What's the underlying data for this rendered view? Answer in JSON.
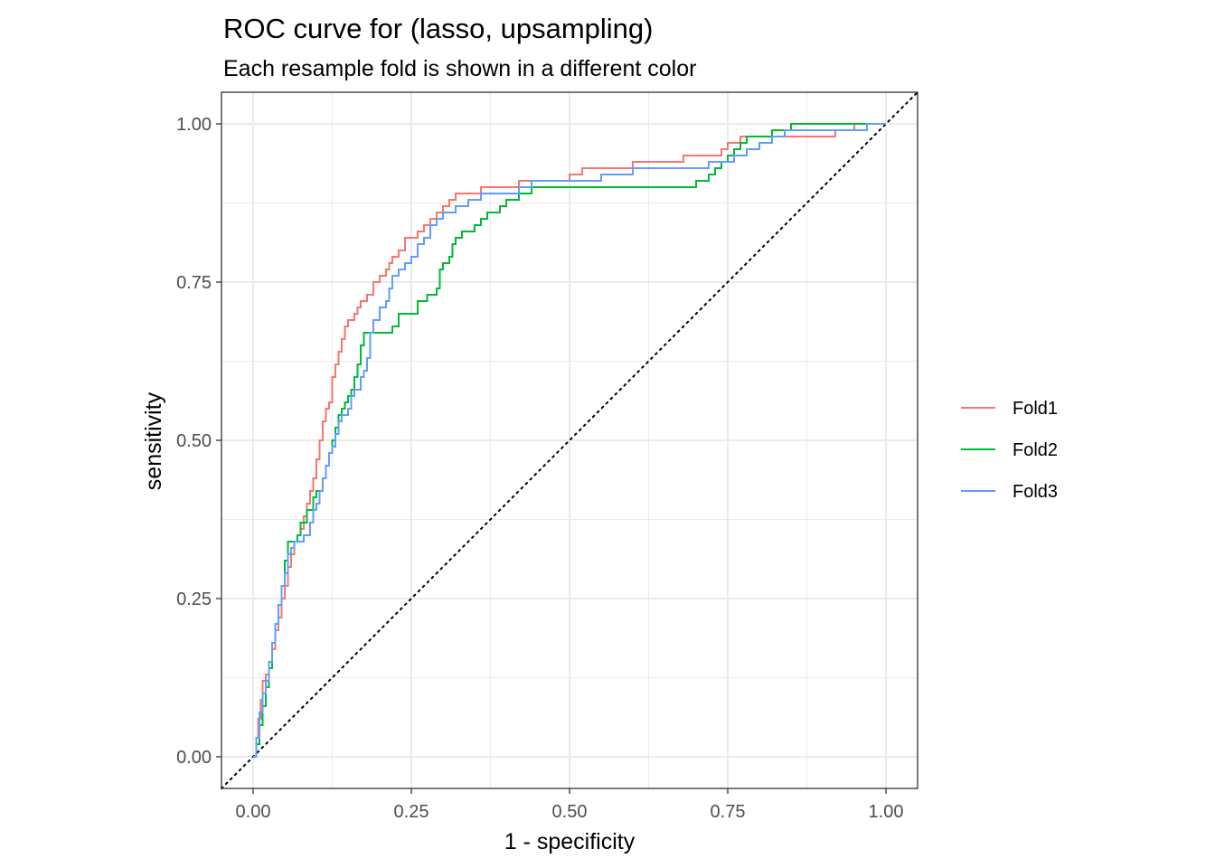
{
  "chart_data": {
    "type": "line",
    "title": "ROC curve for (lasso, upsampling)",
    "subtitle": "Each resample fold is shown in a different color",
    "xlabel": "1 - specificity",
    "ylabel": "sensitivity",
    "xlim": [
      -0.05,
      1.05
    ],
    "ylim": [
      -0.05,
      1.05
    ],
    "x_ticks": [
      0.0,
      0.25,
      0.5,
      0.75,
      1.0
    ],
    "x_tick_labels": [
      "0.00",
      "0.25",
      "0.50",
      "0.75",
      "1.00"
    ],
    "y_ticks": [
      0.0,
      0.25,
      0.5,
      0.75,
      1.0
    ],
    "y_tick_labels": [
      "0.00",
      "0.25",
      "0.50",
      "0.75",
      "1.00"
    ],
    "grid": true,
    "legend_position": "right",
    "reference_line": {
      "style": "dotted",
      "color": "#000000",
      "from": [
        0,
        0
      ],
      "to": [
        1,
        1
      ]
    },
    "series": [
      {
        "name": "Fold1",
        "color": "#F8766D",
        "points": [
          [
            0,
            0
          ],
          [
            0.005,
            0.03
          ],
          [
            0.008,
            0.06
          ],
          [
            0.012,
            0.09
          ],
          [
            0.015,
            0.12
          ],
          [
            0.02,
            0.13
          ],
          [
            0.025,
            0.14
          ],
          [
            0.03,
            0.17
          ],
          [
            0.035,
            0.2
          ],
          [
            0.04,
            0.22
          ],
          [
            0.045,
            0.25
          ],
          [
            0.05,
            0.27
          ],
          [
            0.055,
            0.3
          ],
          [
            0.06,
            0.32
          ],
          [
            0.065,
            0.34
          ],
          [
            0.07,
            0.35
          ],
          [
            0.075,
            0.36
          ],
          [
            0.08,
            0.38
          ],
          [
            0.085,
            0.4
          ],
          [
            0.09,
            0.42
          ],
          [
            0.095,
            0.44
          ],
          [
            0.1,
            0.47
          ],
          [
            0.105,
            0.5
          ],
          [
            0.11,
            0.53
          ],
          [
            0.115,
            0.55
          ],
          [
            0.12,
            0.56
          ],
          [
            0.125,
            0.6
          ],
          [
            0.13,
            0.62
          ],
          [
            0.135,
            0.64
          ],
          [
            0.14,
            0.66
          ],
          [
            0.145,
            0.68
          ],
          [
            0.15,
            0.69
          ],
          [
            0.16,
            0.7
          ],
          [
            0.165,
            0.71
          ],
          [
            0.17,
            0.72
          ],
          [
            0.18,
            0.73
          ],
          [
            0.19,
            0.75
          ],
          [
            0.2,
            0.76
          ],
          [
            0.21,
            0.77
          ],
          [
            0.215,
            0.78
          ],
          [
            0.22,
            0.79
          ],
          [
            0.23,
            0.8
          ],
          [
            0.24,
            0.82
          ],
          [
            0.26,
            0.83
          ],
          [
            0.27,
            0.84
          ],
          [
            0.28,
            0.85
          ],
          [
            0.29,
            0.86
          ],
          [
            0.3,
            0.87
          ],
          [
            0.31,
            0.88
          ],
          [
            0.32,
            0.89
          ],
          [
            0.36,
            0.9
          ],
          [
            0.42,
            0.91
          ],
          [
            0.5,
            0.92
          ],
          [
            0.52,
            0.93
          ],
          [
            0.6,
            0.94
          ],
          [
            0.68,
            0.95
          ],
          [
            0.74,
            0.96
          ],
          [
            0.75,
            0.97
          ],
          [
            0.77,
            0.98
          ],
          [
            0.85,
            0.98
          ],
          [
            0.92,
            0.99
          ],
          [
            0.95,
            1.0
          ],
          [
            1.0,
            1.0
          ]
        ]
      },
      {
        "name": "Fold2",
        "color": "#00BA38",
        "points": [
          [
            0,
            0
          ],
          [
            0.005,
            0.02
          ],
          [
            0.01,
            0.05
          ],
          [
            0.015,
            0.08
          ],
          [
            0.02,
            0.11
          ],
          [
            0.025,
            0.14
          ],
          [
            0.03,
            0.18
          ],
          [
            0.035,
            0.21
          ],
          [
            0.04,
            0.24
          ],
          [
            0.045,
            0.27
          ],
          [
            0.05,
            0.31
          ],
          [
            0.055,
            0.34
          ],
          [
            0.07,
            0.35
          ],
          [
            0.075,
            0.37
          ],
          [
            0.085,
            0.39
          ],
          [
            0.095,
            0.41
          ],
          [
            0.1,
            0.42
          ],
          [
            0.11,
            0.44
          ],
          [
            0.115,
            0.46
          ],
          [
            0.12,
            0.48
          ],
          [
            0.125,
            0.5
          ],
          [
            0.13,
            0.52
          ],
          [
            0.135,
            0.54
          ],
          [
            0.14,
            0.55
          ],
          [
            0.145,
            0.56
          ],
          [
            0.15,
            0.57
          ],
          [
            0.155,
            0.58
          ],
          [
            0.16,
            0.6
          ],
          [
            0.165,
            0.62
          ],
          [
            0.17,
            0.65
          ],
          [
            0.175,
            0.67
          ],
          [
            0.22,
            0.68
          ],
          [
            0.23,
            0.7
          ],
          [
            0.255,
            0.7
          ],
          [
            0.26,
            0.72
          ],
          [
            0.275,
            0.73
          ],
          [
            0.29,
            0.74
          ],
          [
            0.295,
            0.77
          ],
          [
            0.3,
            0.78
          ],
          [
            0.31,
            0.79
          ],
          [
            0.315,
            0.81
          ],
          [
            0.32,
            0.82
          ],
          [
            0.33,
            0.83
          ],
          [
            0.35,
            0.84
          ],
          [
            0.36,
            0.85
          ],
          [
            0.37,
            0.86
          ],
          [
            0.38,
            0.86
          ],
          [
            0.39,
            0.87
          ],
          [
            0.4,
            0.88
          ],
          [
            0.41,
            0.88
          ],
          [
            0.42,
            0.89
          ],
          [
            0.44,
            0.9
          ],
          [
            0.6,
            0.9
          ],
          [
            0.7,
            0.91
          ],
          [
            0.72,
            0.92
          ],
          [
            0.73,
            0.93
          ],
          [
            0.74,
            0.94
          ],
          [
            0.75,
            0.95
          ],
          [
            0.76,
            0.96
          ],
          [
            0.77,
            0.97
          ],
          [
            0.78,
            0.98
          ],
          [
            0.82,
            0.99
          ],
          [
            0.85,
            1.0
          ],
          [
            1.0,
            1.0
          ]
        ]
      },
      {
        "name": "Fold3",
        "color": "#619CFF",
        "points": [
          [
            0,
            0
          ],
          [
            0.005,
            0.03
          ],
          [
            0.01,
            0.07
          ],
          [
            0.015,
            0.1
          ],
          [
            0.02,
            0.12
          ],
          [
            0.025,
            0.15
          ],
          [
            0.03,
            0.18
          ],
          [
            0.035,
            0.21
          ],
          [
            0.04,
            0.24
          ],
          [
            0.045,
            0.27
          ],
          [
            0.05,
            0.29
          ],
          [
            0.055,
            0.32
          ],
          [
            0.06,
            0.33
          ],
          [
            0.065,
            0.34
          ],
          [
            0.08,
            0.35
          ],
          [
            0.09,
            0.37
          ],
          [
            0.095,
            0.39
          ],
          [
            0.1,
            0.4
          ],
          [
            0.105,
            0.42
          ],
          [
            0.11,
            0.44
          ],
          [
            0.115,
            0.46
          ],
          [
            0.12,
            0.48
          ],
          [
            0.125,
            0.49
          ],
          [
            0.13,
            0.51
          ],
          [
            0.135,
            0.53
          ],
          [
            0.14,
            0.54
          ],
          [
            0.15,
            0.55
          ],
          [
            0.155,
            0.57
          ],
          [
            0.16,
            0.58
          ],
          [
            0.17,
            0.6
          ],
          [
            0.175,
            0.61
          ],
          [
            0.18,
            0.63
          ],
          [
            0.185,
            0.67
          ],
          [
            0.19,
            0.69
          ],
          [
            0.2,
            0.71
          ],
          [
            0.21,
            0.72
          ],
          [
            0.215,
            0.74
          ],
          [
            0.22,
            0.76
          ],
          [
            0.23,
            0.77
          ],
          [
            0.24,
            0.78
          ],
          [
            0.25,
            0.79
          ],
          [
            0.26,
            0.81
          ],
          [
            0.27,
            0.82
          ],
          [
            0.28,
            0.84
          ],
          [
            0.29,
            0.85
          ],
          [
            0.3,
            0.86
          ],
          [
            0.32,
            0.87
          ],
          [
            0.34,
            0.88
          ],
          [
            0.36,
            0.89
          ],
          [
            0.42,
            0.9
          ],
          [
            0.44,
            0.91
          ],
          [
            0.5,
            0.91
          ],
          [
            0.55,
            0.92
          ],
          [
            0.6,
            0.93
          ],
          [
            0.7,
            0.93
          ],
          [
            0.72,
            0.94
          ],
          [
            0.76,
            0.95
          ],
          [
            0.78,
            0.96
          ],
          [
            0.8,
            0.97
          ],
          [
            0.82,
            0.98
          ],
          [
            0.84,
            0.99
          ],
          [
            0.97,
            1.0
          ],
          [
            1.0,
            1.0
          ]
        ]
      }
    ]
  }
}
